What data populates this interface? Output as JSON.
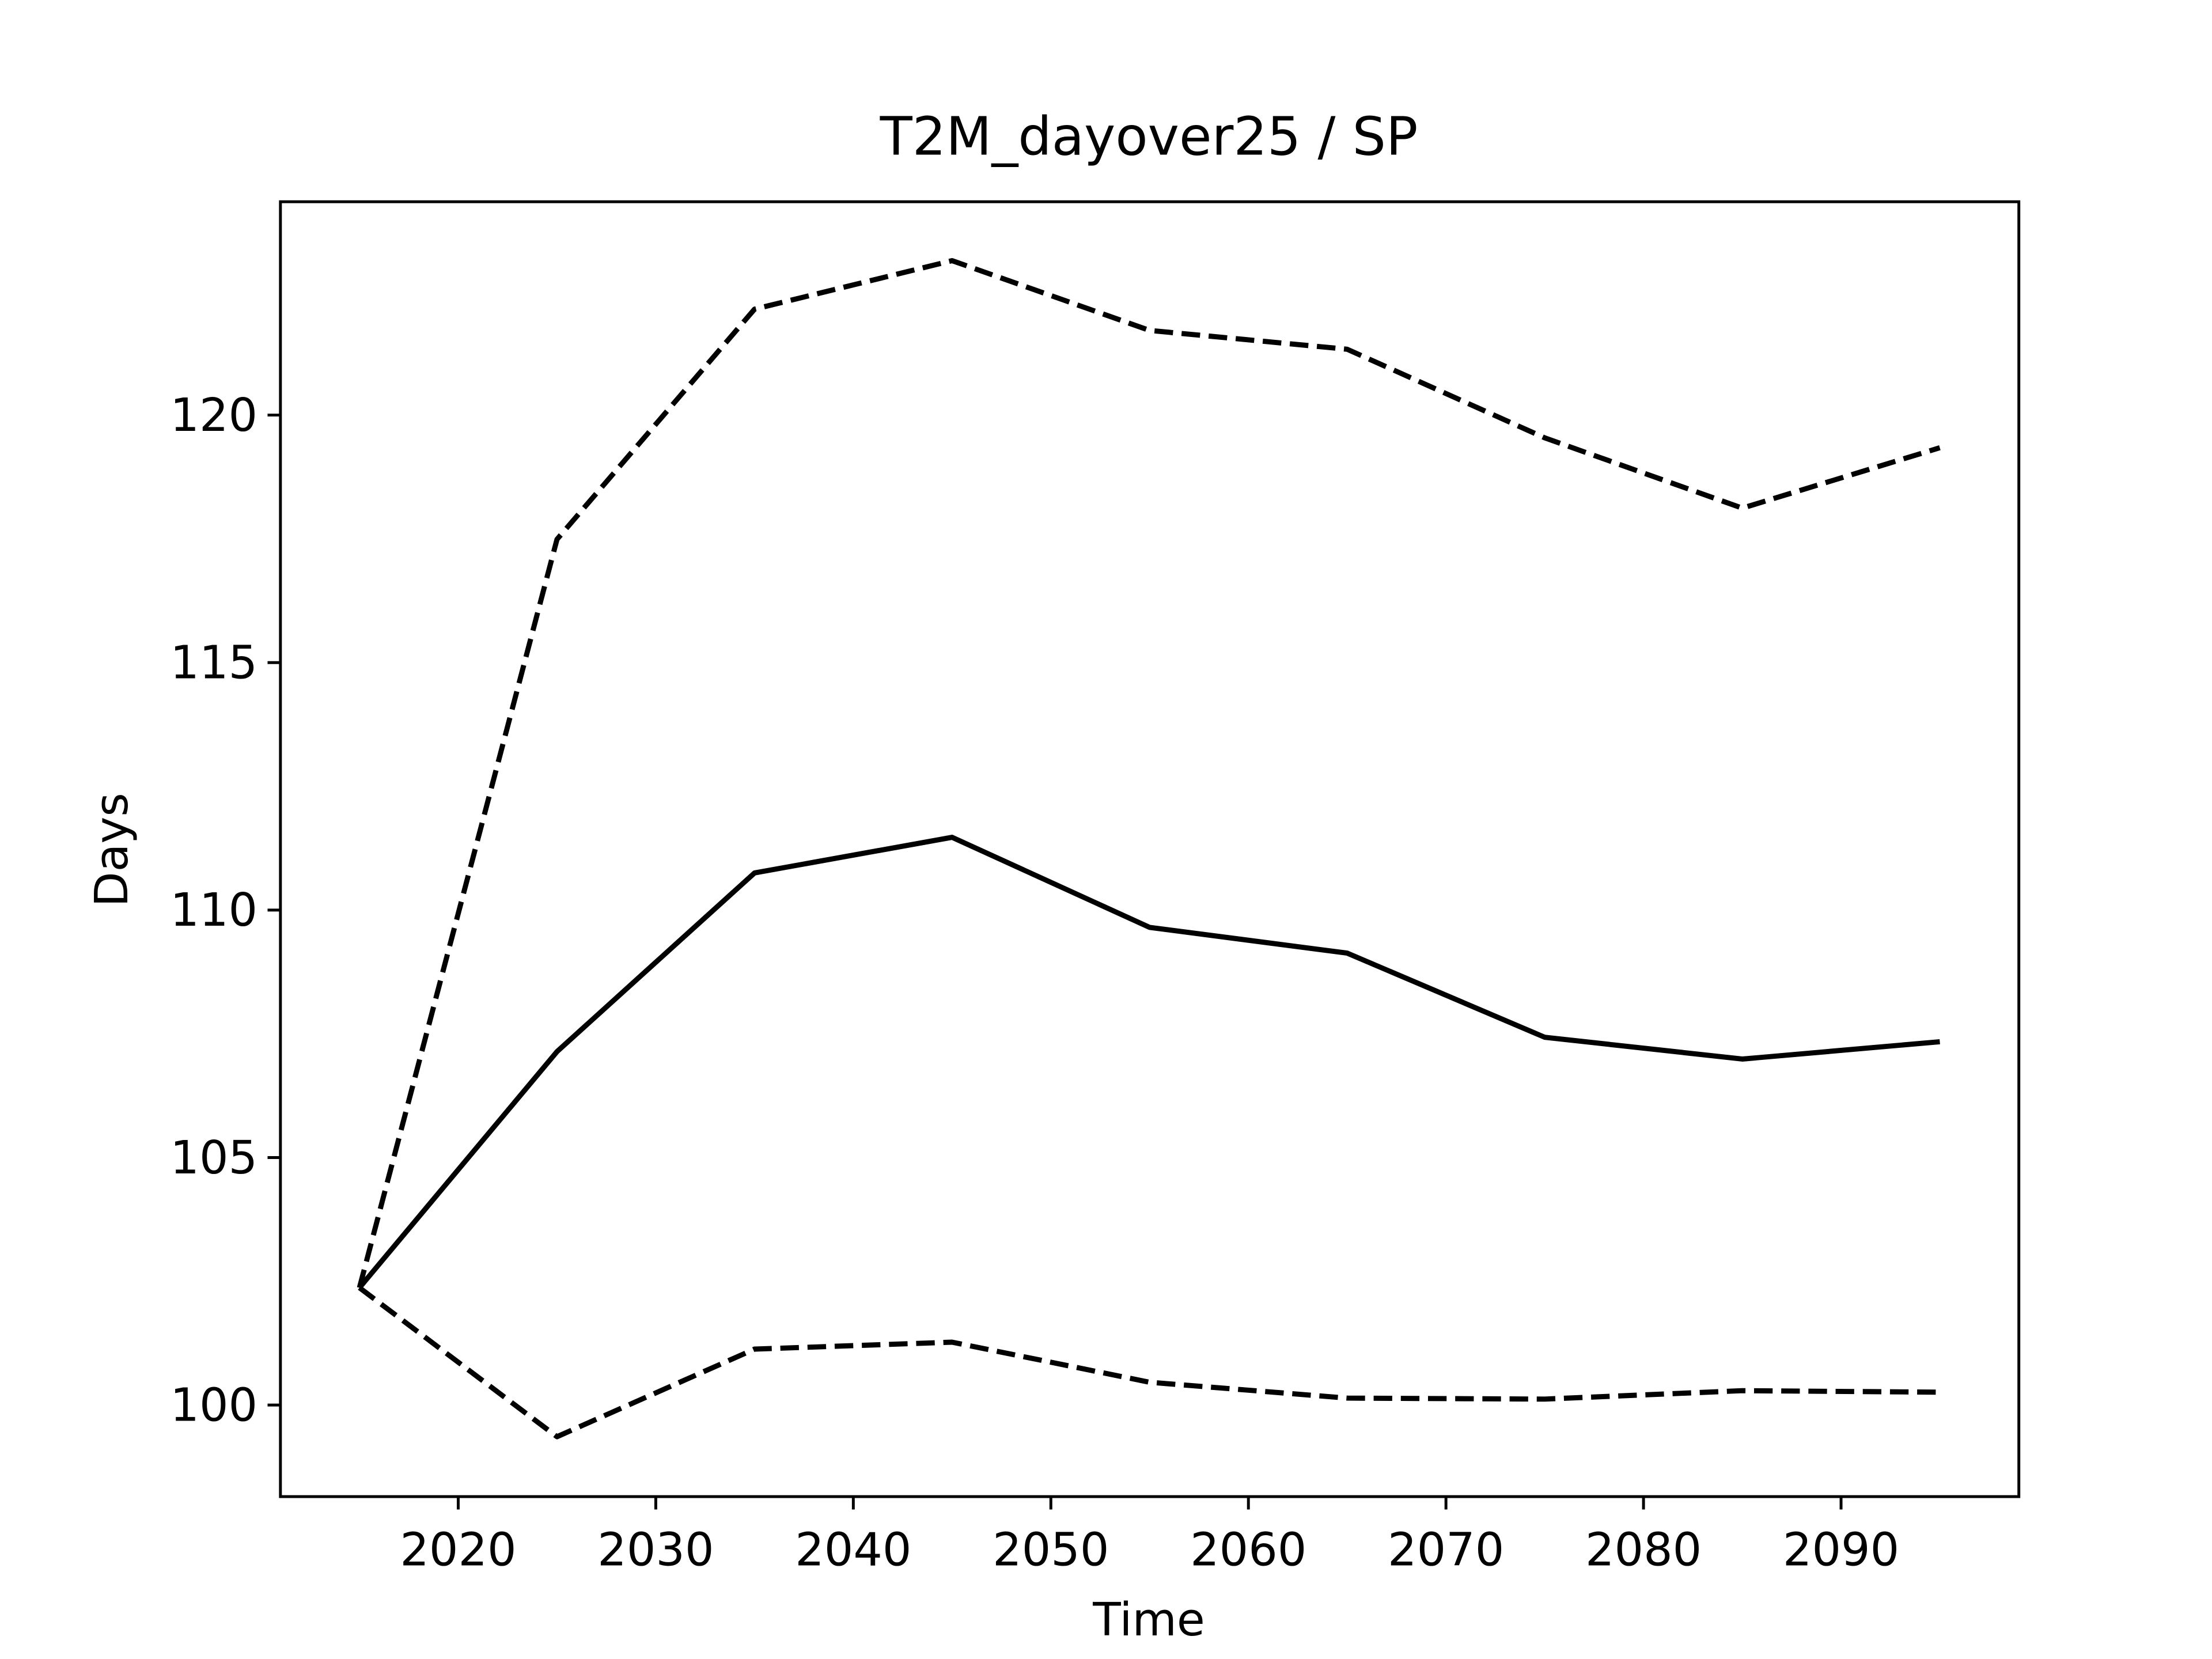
{
  "chart_data": {
    "type": "line",
    "title": "T2M_dayover25 / SP",
    "xlabel": "Time",
    "ylabel": "Days",
    "x": [
      2015,
      2025,
      2035,
      2045,
      2055,
      2065,
      2075,
      2085,
      2095
    ],
    "series": [
      {
        "color": "#000000",
        "linestyle": "solid",
        "values": [
          102.37,
          107.14,
          110.75,
          111.47,
          109.65,
          109.13,
          107.43,
          106.99,
          107.34
        ]
      },
      {
        "color": "#000000",
        "linestyle": "dashed",
        "values": [
          102.37,
          117.49,
          122.14,
          123.12,
          121.71,
          121.33,
          119.54,
          118.12,
          119.34
        ]
      },
      {
        "color": "#000000",
        "linestyle": "dashed",
        "values": [
          102.37,
          99.36,
          101.13,
          101.27,
          100.46,
          100.14,
          100.12,
          100.29,
          100.26
        ]
      }
    ],
    "xlim": [
      2011,
      2099
    ],
    "xticks": [
      2020,
      2030,
      2040,
      2050,
      2060,
      2070,
      2080,
      2090
    ],
    "ylim": [
      98.15,
      124.31
    ],
    "yticks": [
      100,
      105,
      110,
      115,
      120
    ],
    "grid": false
  }
}
